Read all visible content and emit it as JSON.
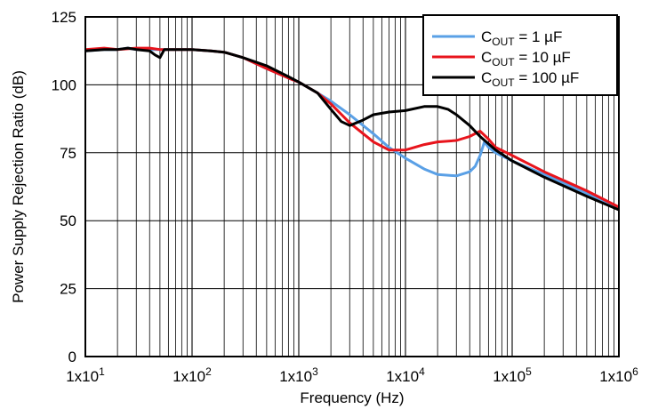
{
  "chart_data": {
    "type": "line",
    "xlabel": "Frequency (Hz)",
    "ylabel": "Power Supply Rejection Ratio (dB)",
    "x_scale": "log",
    "xlim": [
      10,
      1000000
    ],
    "ylim": [
      0,
      125
    ],
    "x_ticks": [
      {
        "value": 10,
        "label": "1x10",
        "exp": "1"
      },
      {
        "value": 100,
        "label": "1x10",
        "exp": "2"
      },
      {
        "value": 1000,
        "label": "1x10",
        "exp": "3"
      },
      {
        "value": 10000,
        "label": "1x10",
        "exp": "4"
      },
      {
        "value": 100000,
        "label": "1x10",
        "exp": "5"
      },
      {
        "value": 1000000,
        "label": "1x10",
        "exp": "6"
      }
    ],
    "y_ticks": [
      0,
      25,
      50,
      75,
      100,
      125
    ],
    "grid": true,
    "legend": {
      "placement": "top-right",
      "entries": [
        {
          "prefix": "C",
          "sub": "OUT",
          "suffix": " = 1 µF",
          "color": "#5aa0e6"
        },
        {
          "prefix": "C",
          "sub": "OUT",
          "suffix": " = 10 µF",
          "color": "#e8141c"
        },
        {
          "prefix": "C",
          "sub": "OUT",
          "suffix": " = 100 µF",
          "color": "#000000"
        }
      ]
    },
    "series": [
      {
        "color": "#5aa0e6",
        "points": [
          [
            10,
            112.5
          ],
          [
            15,
            113
          ],
          [
            20,
            113
          ],
          [
            25,
            113.5
          ],
          [
            30,
            113
          ],
          [
            40,
            113
          ],
          [
            50,
            113
          ],
          [
            70,
            113
          ],
          [
            100,
            113
          ],
          [
            150,
            112.5
          ],
          [
            200,
            112
          ],
          [
            300,
            110
          ],
          [
            500,
            106
          ],
          [
            800,
            102.5
          ],
          [
            1000,
            101
          ],
          [
            1500,
            97
          ],
          [
            2000,
            94
          ],
          [
            3000,
            89
          ],
          [
            5000,
            82
          ],
          [
            7000,
            77
          ],
          [
            10000,
            73
          ],
          [
            15000,
            69
          ],
          [
            20000,
            67
          ],
          [
            30000,
            66.5
          ],
          [
            40000,
            68
          ],
          [
            45000,
            70
          ],
          [
            50000,
            74
          ],
          [
            55000,
            79
          ],
          [
            60000,
            77
          ],
          [
            70000,
            75
          ],
          [
            100000,
            72
          ],
          [
            200000,
            67
          ],
          [
            500000,
            60
          ],
          [
            1000000,
            55
          ]
        ]
      },
      {
        "color": "#e8141c",
        "points": [
          [
            10,
            113
          ],
          [
            15,
            113.5
          ],
          [
            20,
            113
          ],
          [
            30,
            113.5
          ],
          [
            40,
            113.5
          ],
          [
            50,
            113
          ],
          [
            70,
            113
          ],
          [
            100,
            113
          ],
          [
            150,
            112.5
          ],
          [
            200,
            112
          ],
          [
            300,
            110
          ],
          [
            500,
            106
          ],
          [
            800,
            102.5
          ],
          [
            1000,
            101
          ],
          [
            1500,
            97
          ],
          [
            2000,
            93
          ],
          [
            3000,
            86
          ],
          [
            5000,
            79
          ],
          [
            7000,
            76
          ],
          [
            10000,
            76
          ],
          [
            15000,
            78
          ],
          [
            20000,
            79
          ],
          [
            30000,
            79.5
          ],
          [
            40000,
            81
          ],
          [
            50000,
            83
          ],
          [
            60000,
            80
          ],
          [
            70000,
            77
          ],
          [
            100000,
            74
          ],
          [
            200000,
            68
          ],
          [
            500000,
            61
          ],
          [
            1000000,
            55
          ]
        ]
      },
      {
        "color": "#000000",
        "points": [
          [
            10,
            112.5
          ],
          [
            15,
            113
          ],
          [
            20,
            113
          ],
          [
            25,
            113.5
          ],
          [
            30,
            113
          ],
          [
            40,
            112.5
          ],
          [
            45,
            111
          ],
          [
            50,
            110
          ],
          [
            55,
            113
          ],
          [
            70,
            113
          ],
          [
            100,
            113
          ],
          [
            150,
            112.5
          ],
          [
            200,
            112
          ],
          [
            300,
            110
          ],
          [
            500,
            107
          ],
          [
            800,
            103
          ],
          [
            1000,
            101
          ],
          [
            1500,
            97
          ],
          [
            2000,
            91
          ],
          [
            2500,
            86.5
          ],
          [
            3000,
            85
          ],
          [
            4000,
            87
          ],
          [
            5000,
            89
          ],
          [
            7000,
            90
          ],
          [
            10000,
            90.5
          ],
          [
            15000,
            92
          ],
          [
            20000,
            92
          ],
          [
            25000,
            91
          ],
          [
            30000,
            89
          ],
          [
            40000,
            85
          ],
          [
            50000,
            81
          ],
          [
            70000,
            76
          ],
          [
            100000,
            72
          ],
          [
            200000,
            66
          ],
          [
            500000,
            59
          ],
          [
            1000000,
            54
          ]
        ]
      }
    ]
  }
}
